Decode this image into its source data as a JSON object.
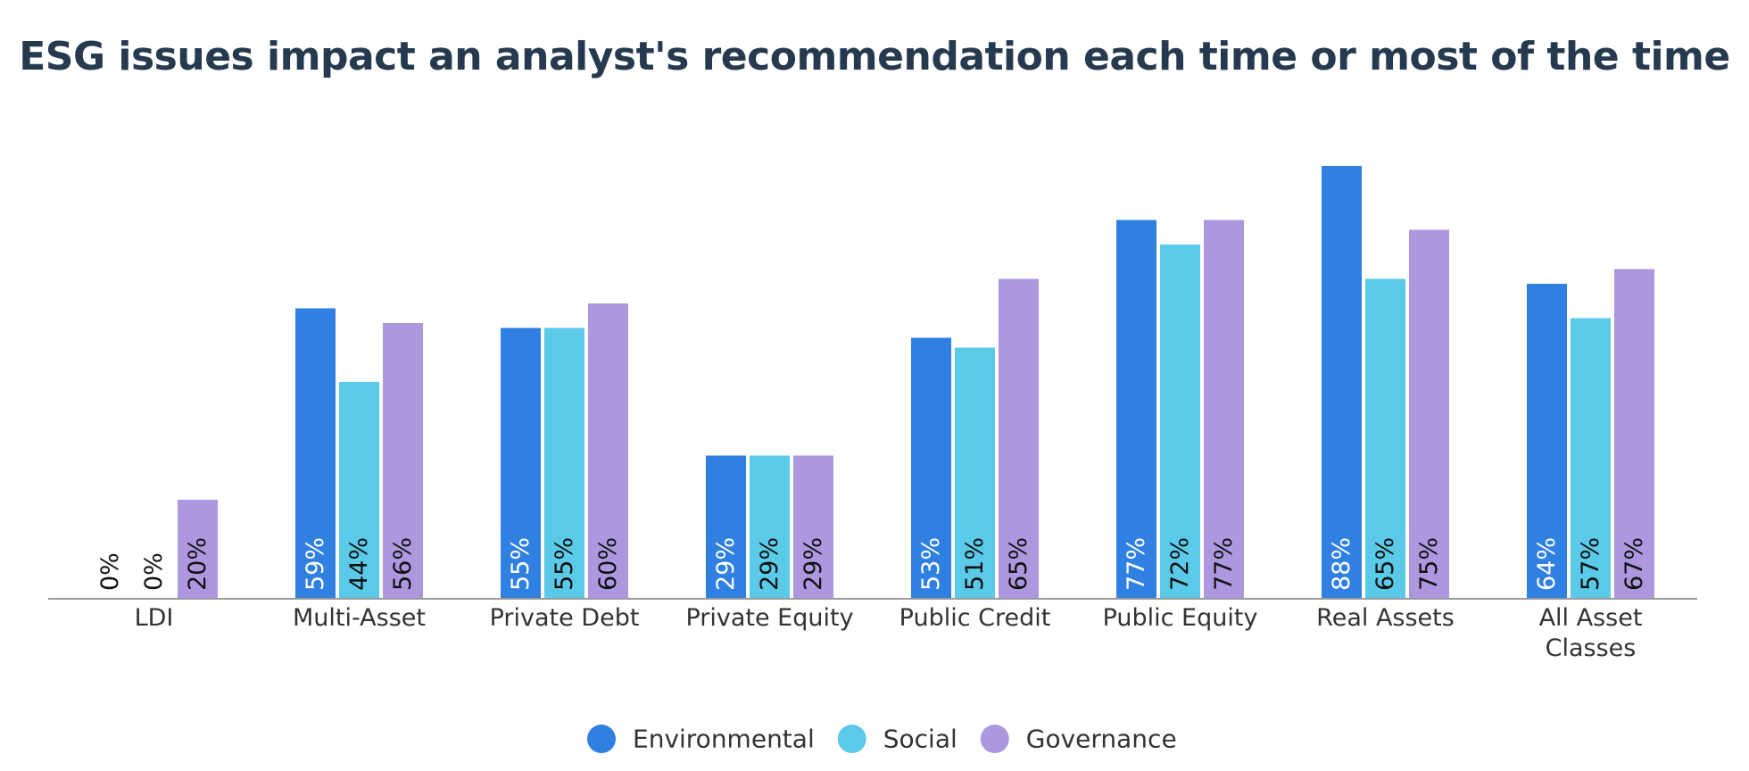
{
  "chart_data": {
    "type": "bar",
    "title": "ESG issues impact an analyst's recommendation each time or most of the time",
    "xlabel": "",
    "ylabel": "",
    "ylim": [
      0,
      100
    ],
    "grid": false,
    "legend_position": "bottom-center",
    "categories": [
      [
        "LDI"
      ],
      [
        "Multi-Asset"
      ],
      [
        "Private Debt"
      ],
      [
        "Private Equity"
      ],
      [
        "Public Credit"
      ],
      [
        "Public Equity"
      ],
      [
        "Real Assets"
      ],
      [
        "All Asset",
        "Classes"
      ]
    ],
    "series": [
      {
        "name": "Environmental",
        "color": "#3080e2",
        "label_color": "#ffffff",
        "values": [
          0,
          59,
          55,
          29,
          53,
          77,
          88,
          64
        ]
      },
      {
        "name": "Social",
        "color": "#5bc9e8",
        "label_color": "#111111",
        "values": [
          0,
          44,
          55,
          29,
          51,
          72,
          65,
          57
        ]
      },
      {
        "name": "Governance",
        "color": "#ad98e0",
        "label_color": "#111111",
        "values": [
          20,
          56,
          60,
          29,
          65,
          77,
          75,
          67
        ]
      }
    ],
    "value_suffix": "%",
    "zero_label_color": "#111111"
  }
}
